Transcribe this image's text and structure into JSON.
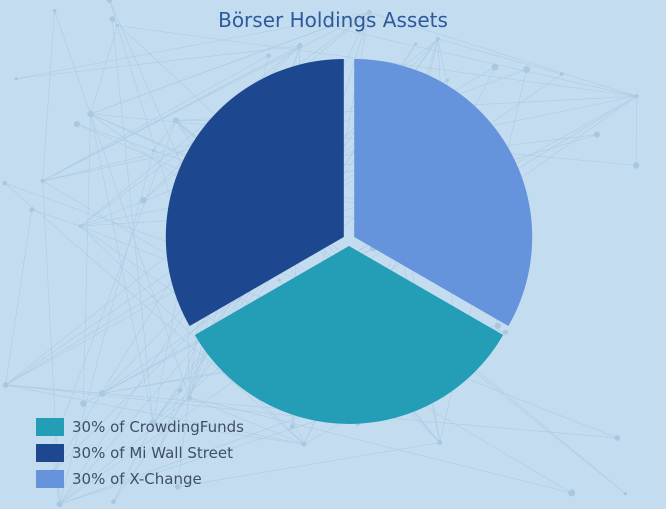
{
  "chart_data": {
    "type": "pie",
    "title": "Börser Holdings Assets",
    "slices": [
      {
        "label": "30% of CrowdingFunds",
        "value": 30,
        "color": "#239eb6"
      },
      {
        "label": "30% of Mi Wall Street",
        "value": 30,
        "color": "#1d4890"
      },
      {
        "label": "30% of X-Change",
        "value": 30,
        "color": "#6594dc"
      }
    ],
    "legend_position": "bottom-left",
    "background_color": "#c4dcef"
  }
}
